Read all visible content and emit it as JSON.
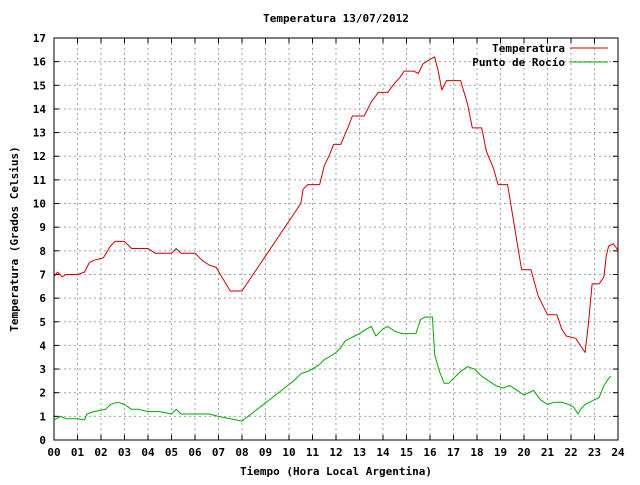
{
  "chart_data": {
    "type": "line",
    "title": "Temperatura 13/07/2012",
    "xlabel": "Tiempo (Hora Local Argentina)",
    "ylabel": "Temperatura (Grados Celsius)",
    "xlim": [
      0,
      24
    ],
    "ylim": [
      0,
      17
    ],
    "grid": true,
    "legend_position": "top-right",
    "x_tick_labels": [
      "00",
      "01",
      "02",
      "03",
      "04",
      "05",
      "06",
      "07",
      "08",
      "09",
      "10",
      "11",
      "12",
      "13",
      "14",
      "15",
      "16",
      "17",
      "18",
      "19",
      "20",
      "21",
      "22",
      "23",
      "24"
    ],
    "y_tick_labels": [
      "0",
      "1",
      "2",
      "3",
      "4",
      "5",
      "6",
      "7",
      "8",
      "9",
      "10",
      "11",
      "12",
      "13",
      "14",
      "15",
      "16",
      "17"
    ],
    "series": [
      {
        "name": "Temperatura",
        "color": "#cc0000",
        "points": [
          [
            0.0,
            6.9
          ],
          [
            0.15,
            7.1
          ],
          [
            0.35,
            6.9
          ],
          [
            0.5,
            7.0
          ],
          [
            1.0,
            7.0
          ],
          [
            1.3,
            7.1
          ],
          [
            1.5,
            7.5
          ],
          [
            1.7,
            7.6
          ],
          [
            2.1,
            7.7
          ],
          [
            2.4,
            8.2
          ],
          [
            2.6,
            8.4
          ],
          [
            3.0,
            8.4
          ],
          [
            3.3,
            8.1
          ],
          [
            4.0,
            8.1
          ],
          [
            4.3,
            7.9
          ],
          [
            5.0,
            7.9
          ],
          [
            5.2,
            8.1
          ],
          [
            5.4,
            7.9
          ],
          [
            6.0,
            7.9
          ],
          [
            6.3,
            7.6
          ],
          [
            6.6,
            7.4
          ],
          [
            6.9,
            7.3
          ],
          [
            7.2,
            6.8
          ],
          [
            7.5,
            6.3
          ],
          [
            7.9,
            6.3
          ],
          [
            8.0,
            6.3
          ],
          [
            10.5,
            10.0
          ],
          [
            10.6,
            10.6
          ],
          [
            10.8,
            10.8
          ],
          [
            11.3,
            10.8
          ],
          [
            11.5,
            11.6
          ],
          [
            11.7,
            12.0
          ],
          [
            11.9,
            12.5
          ],
          [
            12.2,
            12.5
          ],
          [
            12.5,
            13.2
          ],
          [
            12.7,
            13.7
          ],
          [
            13.2,
            13.7
          ],
          [
            13.5,
            14.3
          ],
          [
            13.8,
            14.7
          ],
          [
            14.2,
            14.7
          ],
          [
            14.5,
            15.1
          ],
          [
            14.7,
            15.3
          ],
          [
            14.9,
            15.6
          ],
          [
            15.3,
            15.6
          ],
          [
            15.5,
            15.5
          ],
          [
            15.7,
            15.9
          ],
          [
            16.0,
            16.1
          ],
          [
            16.2,
            16.2
          ],
          [
            16.35,
            15.6
          ],
          [
            16.5,
            14.8
          ],
          [
            16.7,
            15.2
          ],
          [
            17.3,
            15.2
          ],
          [
            17.6,
            14.2
          ],
          [
            17.8,
            13.2
          ],
          [
            18.2,
            13.2
          ],
          [
            18.4,
            12.2
          ],
          [
            18.7,
            11.5
          ],
          [
            18.9,
            10.8
          ],
          [
            19.3,
            10.8
          ],
          [
            19.6,
            9.0
          ],
          [
            19.9,
            7.2
          ],
          [
            20.3,
            7.2
          ],
          [
            20.6,
            6.1
          ],
          [
            21.0,
            5.3
          ],
          [
            21.4,
            5.3
          ],
          [
            21.6,
            4.7
          ],
          [
            21.8,
            4.4
          ],
          [
            22.2,
            4.3
          ],
          [
            22.4,
            4.0
          ],
          [
            22.6,
            3.7
          ],
          [
            22.75,
            5.0
          ],
          [
            22.9,
            6.6
          ],
          [
            23.2,
            6.6
          ],
          [
            23.4,
            6.9
          ],
          [
            23.5,
            7.8
          ],
          [
            23.6,
            8.2
          ],
          [
            23.8,
            8.3
          ],
          [
            23.95,
            8.1
          ],
          [
            24.0,
            8.0
          ]
        ]
      },
      {
        "name": "Punto de Rocío",
        "color": "#00aa00",
        "points": [
          [
            0.0,
            0.85
          ],
          [
            0.1,
            0.9
          ],
          [
            0.3,
            1.0
          ],
          [
            0.5,
            0.9
          ],
          [
            1.0,
            0.9
          ],
          [
            1.3,
            0.85
          ],
          [
            1.4,
            1.1
          ],
          [
            1.7,
            1.2
          ],
          [
            2.2,
            1.3
          ],
          [
            2.4,
            1.5
          ],
          [
            2.7,
            1.6
          ],
          [
            3.0,
            1.5
          ],
          [
            3.3,
            1.3
          ],
          [
            3.6,
            1.3
          ],
          [
            4.0,
            1.2
          ],
          [
            4.5,
            1.2
          ],
          [
            5.0,
            1.1
          ],
          [
            5.2,
            1.3
          ],
          [
            5.4,
            1.1
          ],
          [
            6.0,
            1.1
          ],
          [
            6.6,
            1.1
          ],
          [
            7.0,
            1.0
          ],
          [
            7.5,
            0.9
          ],
          [
            8.0,
            0.8
          ],
          [
            10.2,
            2.5
          ],
          [
            10.5,
            2.8
          ],
          [
            10.8,
            2.9
          ],
          [
            11.0,
            3.0
          ],
          [
            11.3,
            3.2
          ],
          [
            11.5,
            3.4
          ],
          [
            11.7,
            3.5
          ],
          [
            12.0,
            3.7
          ],
          [
            12.2,
            3.9
          ],
          [
            12.4,
            4.2
          ],
          [
            12.6,
            4.3
          ],
          [
            12.8,
            4.4
          ],
          [
            13.0,
            4.5
          ],
          [
            13.3,
            4.7
          ],
          [
            13.5,
            4.8
          ],
          [
            13.7,
            4.4
          ],
          [
            14.0,
            4.7
          ],
          [
            14.2,
            4.8
          ],
          [
            14.5,
            4.6
          ],
          [
            14.8,
            4.5
          ],
          [
            15.0,
            4.5
          ],
          [
            15.2,
            4.5
          ],
          [
            15.4,
            4.5
          ],
          [
            15.6,
            5.1
          ],
          [
            15.8,
            5.2
          ],
          [
            16.1,
            5.2
          ],
          [
            16.2,
            3.6
          ],
          [
            16.4,
            2.9
          ],
          [
            16.6,
            2.4
          ],
          [
            16.8,
            2.4
          ],
          [
            17.0,
            2.6
          ],
          [
            17.3,
            2.9
          ],
          [
            17.6,
            3.1
          ],
          [
            17.9,
            3.0
          ],
          [
            18.2,
            2.7
          ],
          [
            18.5,
            2.5
          ],
          [
            18.8,
            2.3
          ],
          [
            19.1,
            2.2
          ],
          [
            19.4,
            2.3
          ],
          [
            19.7,
            2.1
          ],
          [
            20.0,
            1.9
          ],
          [
            20.4,
            2.1
          ],
          [
            20.7,
            1.7
          ],
          [
            21.0,
            1.5
          ],
          [
            21.3,
            1.6
          ],
          [
            21.6,
            1.6
          ],
          [
            21.9,
            1.5
          ],
          [
            22.1,
            1.4
          ],
          [
            22.3,
            1.1
          ],
          [
            22.4,
            1.3
          ],
          [
            22.6,
            1.5
          ],
          [
            22.8,
            1.6
          ],
          [
            23.0,
            1.7
          ],
          [
            23.2,
            1.8
          ],
          [
            23.4,
            2.3
          ],
          [
            23.6,
            2.6
          ],
          [
            23.7,
            2.7
          ]
        ]
      }
    ]
  }
}
